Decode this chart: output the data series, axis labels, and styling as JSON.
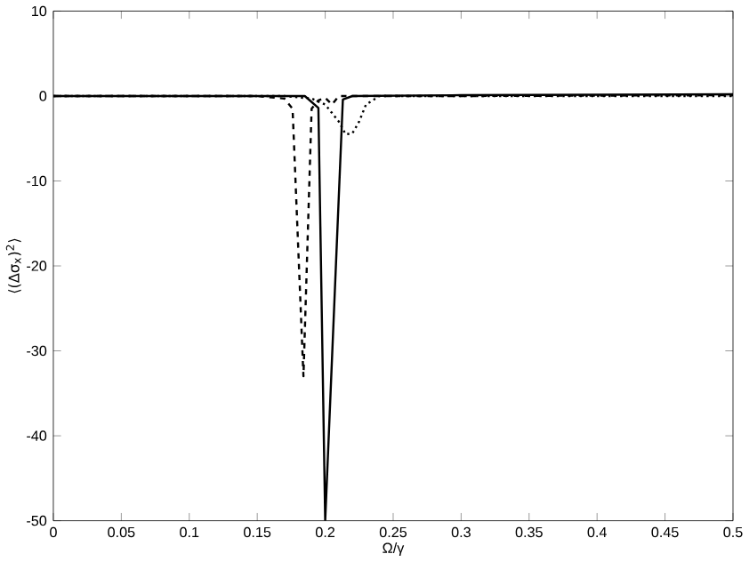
{
  "chart_data": {
    "type": "line",
    "xlabel": "Ω/γ",
    "ylabel": "⟨(Δσ$_{x}$)$^{2}$⟩",
    "xlim": [
      0,
      0.5
    ],
    "ylim": [
      -50,
      10
    ],
    "xticks": [
      0,
      0.05,
      0.1,
      0.15,
      0.2,
      0.25,
      0.3,
      0.35,
      0.4,
      0.45,
      0.5
    ],
    "yticks": [
      -50,
      -40,
      -30,
      -20,
      -10,
      0,
      10
    ],
    "grid": false,
    "marker": "none",
    "series": [
      {
        "color": "#000000",
        "line_style": "solid",
        "x": [
          0,
          0.15,
          0.185,
          0.195,
          0.2,
          0.213,
          0.22,
          0.3,
          0.5
        ],
        "values": [
          0,
          0,
          0,
          -1.4,
          -50,
          -0.4,
          0,
          0.1,
          0.2
        ]
      },
      {
        "color": "#000000",
        "line_style": "dashed",
        "x": [
          0,
          0.15,
          0.17,
          0.176,
          0.184,
          0.19,
          0.195,
          0.2,
          0.205,
          0.21,
          0.3,
          0.5
        ],
        "values": [
          0,
          0,
          -0.3,
          -1.5,
          -33,
          -1.5,
          -0.5,
          -0.2,
          -1,
          0,
          0,
          0.1
        ]
      },
      {
        "color": "#000000",
        "line_style": "dotted",
        "x": [
          0,
          0.17,
          0.19,
          0.2,
          0.21,
          0.215,
          0.22,
          0.225,
          0.23,
          0.24,
          0.3,
          0.5
        ],
        "values": [
          0,
          0,
          -0.3,
          -1,
          -3,
          -4.5,
          -4.4,
          -3,
          -1,
          0,
          0,
          0
        ]
      }
    ]
  }
}
